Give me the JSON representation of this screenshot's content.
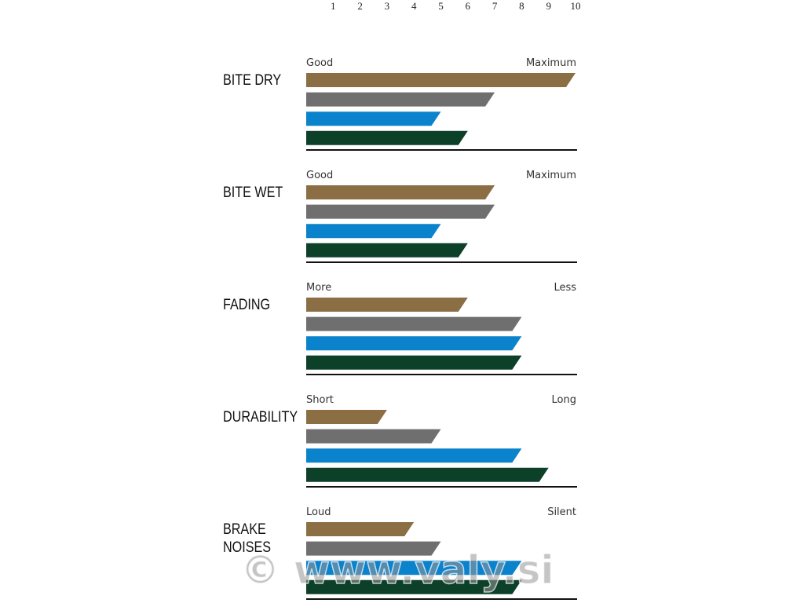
{
  "chart_data": {
    "type": "bar",
    "xlim": [
      0,
      10
    ],
    "xticks": [
      1,
      2,
      3,
      4,
      5,
      6,
      7,
      8,
      9,
      10
    ],
    "colors": [
      "#8c6e45",
      "#6f6f6f",
      "#0a82cc",
      "#0d4029"
    ],
    "panels": [
      {
        "title": "BITE DRY",
        "low_label": "Good",
        "high_label": "Maximum",
        "values": [
          10,
          7,
          5,
          6
        ]
      },
      {
        "title": "BITE WET",
        "low_label": "Good",
        "high_label": "Maximum",
        "values": [
          7,
          7,
          5,
          6
        ]
      },
      {
        "title": "FADING",
        "low_label": "More",
        "high_label": "Less",
        "values": [
          6,
          8,
          8,
          8
        ]
      },
      {
        "title": "DURABILITY",
        "low_label": "Short",
        "high_label": "Long",
        "values": [
          3,
          5,
          8,
          9
        ]
      },
      {
        "title": "BRAKE NOISES",
        "low_label": "Loud",
        "high_label": "Silent",
        "values": [
          4,
          5,
          8,
          8
        ]
      }
    ],
    "watermark": "© www.valy.si"
  }
}
